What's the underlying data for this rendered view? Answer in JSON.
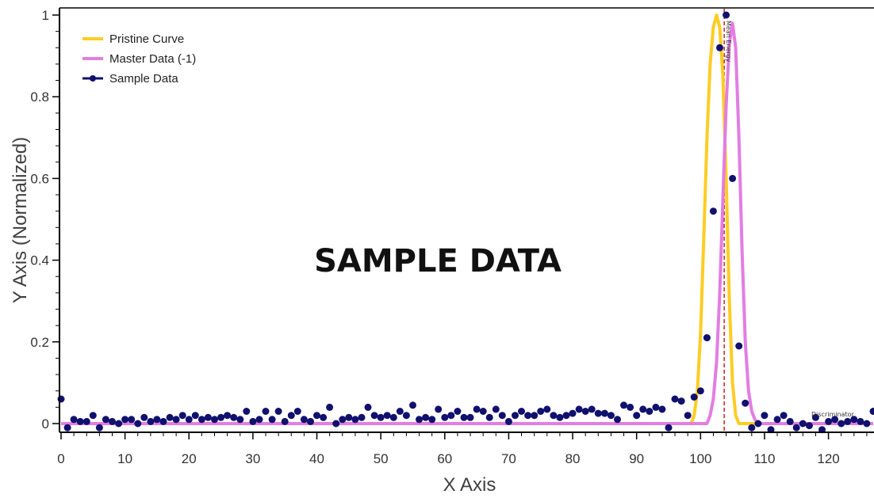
{
  "chart_data": {
    "type": "line",
    "title": "",
    "xlabel": "X Axis",
    "ylabel": "Y Axis (Normalized)",
    "xlim": [
      0,
      127
    ],
    "ylim": [
      0,
      1
    ],
    "x_ticks": [
      "0",
      "10",
      "20",
      "30",
      "40",
      "50",
      "60",
      "70",
      "80",
      "90",
      "100",
      "110",
      "120"
    ],
    "y_ticks": [
      "0",
      "0.2",
      "0.4",
      "0.6",
      "0.8",
      "1"
    ],
    "grid": false,
    "legend_position": "top-left",
    "watermark": "SAMPLE DATA",
    "annotations": [
      {
        "text": "Mean Energy",
        "x": 103.7
      },
      {
        "text": "Discriminator",
        "x": 124
      }
    ],
    "vertical_line": {
      "x": 103.7,
      "color": "#c00000",
      "style": "dashed"
    },
    "series": [
      {
        "name": "Pristine Curve",
        "type": "line",
        "color": "#ffcc22",
        "x": [
          0,
          98.5,
          99,
          99.5,
          100,
          100.5,
          101,
          101.5,
          102,
          102.5,
          103,
          103.5,
          104,
          104.5,
          105,
          105.5,
          106,
          127
        ],
        "y": [
          0,
          0,
          0.02,
          0.08,
          0.22,
          0.45,
          0.7,
          0.88,
          0.97,
          1.0,
          0.97,
          0.85,
          0.6,
          0.3,
          0.1,
          0.02,
          0,
          0
        ]
      },
      {
        "name": "Master Data (-1)",
        "type": "line",
        "color": "#e27de2",
        "x": [
          0,
          101,
          101.5,
          102,
          102.5,
          103,
          103.5,
          104,
          104.5,
          105,
          105.5,
          106,
          106.5,
          107,
          107.5,
          108,
          108.5,
          109,
          127
        ],
        "y": [
          0,
          0,
          0.02,
          0.06,
          0.15,
          0.32,
          0.55,
          0.78,
          0.93,
          0.98,
          0.92,
          0.7,
          0.42,
          0.2,
          0.08,
          0.03,
          0.01,
          0,
          0
        ]
      },
      {
        "name": "Sample Data",
        "type": "scatter",
        "color": "#10106e",
        "x": [
          0,
          1,
          2,
          3,
          4,
          5,
          6,
          7,
          8,
          9,
          10,
          11,
          12,
          13,
          14,
          15,
          16,
          17,
          18,
          19,
          20,
          21,
          22,
          23,
          24,
          25,
          26,
          27,
          28,
          29,
          30,
          31,
          32,
          33,
          34,
          35,
          36,
          37,
          38,
          39,
          40,
          41,
          42,
          43,
          44,
          45,
          46,
          47,
          48,
          49,
          50,
          51,
          52,
          53,
          54,
          55,
          56,
          57,
          58,
          59,
          60,
          61,
          62,
          63,
          64,
          65,
          66,
          67,
          68,
          69,
          70,
          71,
          72,
          73,
          74,
          75,
          76,
          77,
          78,
          79,
          80,
          81,
          82,
          83,
          84,
          85,
          86,
          87,
          88,
          89,
          90,
          91,
          92,
          93,
          94,
          95,
          96,
          97,
          98,
          99,
          100,
          101,
          102,
          103,
          104,
          105,
          106,
          107,
          108,
          109,
          110,
          111,
          112,
          113,
          114,
          115,
          116,
          117,
          118,
          119,
          120,
          121,
          122,
          123,
          124,
          125,
          126,
          127
        ],
        "y": [
          0.06,
          -0.01,
          0.01,
          0.005,
          0.005,
          0.02,
          -0.01,
          0.01,
          0.005,
          0.0,
          0.01,
          0.01,
          0.0,
          0.015,
          0.005,
          0.01,
          0.005,
          0.015,
          0.01,
          0.02,
          0.01,
          0.02,
          0.01,
          0.015,
          0.01,
          0.015,
          0.02,
          0.015,
          0.01,
          0.03,
          0.005,
          0.01,
          0.03,
          0.01,
          0.03,
          0.005,
          0.02,
          0.03,
          0.01,
          0.005,
          0.02,
          0.015,
          0.04,
          0.0,
          0.01,
          0.015,
          0.01,
          0.015,
          0.04,
          0.02,
          0.015,
          0.02,
          0.015,
          0.03,
          0.02,
          0.045,
          0.01,
          0.015,
          0.01,
          0.035,
          0.015,
          0.02,
          0.03,
          0.015,
          0.015,
          0.035,
          0.03,
          0.015,
          0.035,
          0.02,
          0.005,
          0.02,
          0.03,
          0.02,
          0.02,
          0.03,
          0.035,
          0.02,
          0.015,
          0.02,
          0.025,
          0.035,
          0.03,
          0.035,
          0.025,
          0.025,
          0.02,
          0.01,
          0.045,
          0.04,
          0.02,
          0.035,
          0.03,
          0.04,
          0.035,
          -0.01,
          0.06,
          0.055,
          0.02,
          0.065,
          0.08,
          0.21,
          0.52,
          0.92,
          1.0,
          0.6,
          0.19,
          0.05,
          -0.01,
          0.0,
          0.02,
          -0.015,
          0.01,
          0.02,
          0.005,
          -0.01,
          0.0,
          -0.005,
          0.015,
          -0.015,
          0.005,
          0.01,
          0.0,
          0.005,
          0.01,
          0.005,
          0.0,
          0.03
        ]
      }
    ]
  }
}
